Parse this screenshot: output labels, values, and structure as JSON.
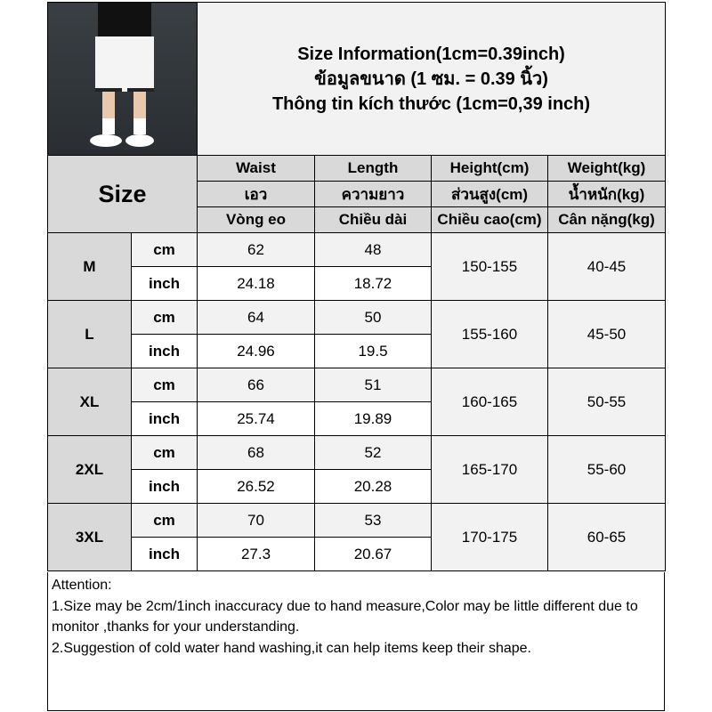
{
  "title": {
    "en": "Size Information(1cm=0.39inch)",
    "th": "ข้อมูลขนาด (1 ซม. = 0.39 นิ้ว)",
    "vi": "Thông tin kích thước (1cm=0,39 inch)"
  },
  "size_label": "Size",
  "columns": [
    {
      "en": "Waist",
      "th": "เอว",
      "vi": "Vòng eo"
    },
    {
      "en": "Length",
      "th": "ความยาว",
      "vi": "Chiều dài"
    },
    {
      "en": "Height(cm)",
      "th": "ส่วนสูง(cm)",
      "vi": "Chiều cao(cm)"
    },
    {
      "en": "Weight(kg)",
      "th": "น้ำหนัก(kg)",
      "vi": "Cân nặng(kg)"
    }
  ],
  "units": {
    "cm": "cm",
    "inch": "inch"
  },
  "rows": [
    {
      "size": "M",
      "cm": [
        "62",
        "48"
      ],
      "inch": [
        "24.18",
        "18.72"
      ],
      "height": "150-155",
      "weight": "40-45"
    },
    {
      "size": "L",
      "cm": [
        "64",
        "50"
      ],
      "inch": [
        "24.96",
        "19.5"
      ],
      "height": "155-160",
      "weight": "45-50"
    },
    {
      "size": "XL",
      "cm": [
        "66",
        "51"
      ],
      "inch": [
        "25.74",
        "19.89"
      ],
      "height": "160-165",
      "weight": "50-55"
    },
    {
      "size": "2XL",
      "cm": [
        "68",
        "52"
      ],
      "inch": [
        "26.52",
        "20.28"
      ],
      "height": "165-170",
      "weight": "55-60"
    },
    {
      "size": "3XL",
      "cm": [
        "70",
        "53"
      ],
      "inch": [
        "27.3",
        "20.67"
      ],
      "height": "170-175",
      "weight": "60-65"
    }
  ],
  "attention": {
    "heading": "Attention:",
    "lines": [
      "1.Size may be 2cm/1inch inaccuracy due to hand measure,Color may be little different due to monitor ,thanks for your understanding.",
      "2.Suggestion of cold water hand washing,it can help items keep their shape."
    ]
  }
}
